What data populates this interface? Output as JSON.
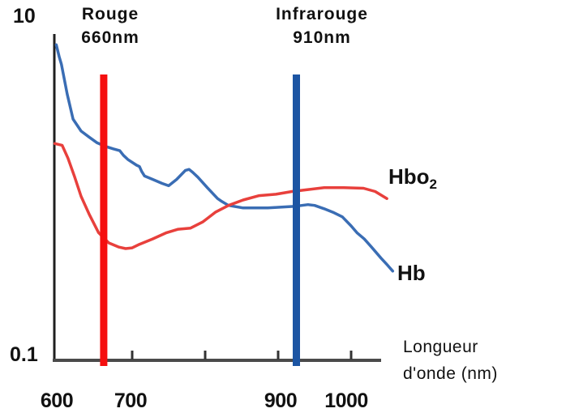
{
  "colors": {
    "background": "#ffffff",
    "x_axis_line": "#4a4a4a",
    "y_axis_line": "#1f1f1f",
    "tick": "#333333",
    "text": "#111111"
  },
  "chart_data": {
    "type": "line",
    "title": "",
    "y_axis": {
      "scale": "log",
      "min": 0.1,
      "max": 10,
      "top_label": "10",
      "bottom_label": "0.1"
    },
    "x_axis": {
      "label_line1": "Longueur",
      "label_line2": "d'onde (nm)",
      "min": 600,
      "max": 1060,
      "ticks_nm": [
        700,
        800,
        900,
        1000
      ],
      "tick_labels": [
        {
          "nm": 600,
          "text": "600"
        },
        {
          "nm": 700,
          "text": "700"
        },
        {
          "nm": 900,
          "text": "900"
        },
        {
          "nm": 1000,
          "text": "1000"
        }
      ]
    },
    "grid": false,
    "legend_position": "right-of-curves",
    "series": [
      {
        "name": "Hb",
        "label": "Hb",
        "color": "#3a6db4",
        "points": [
          [
            596,
            8.4
          ],
          [
            600,
            7.1
          ],
          [
            603,
            6.4
          ],
          [
            611,
            4.2
          ],
          [
            619,
            2.96
          ],
          [
            630,
            2.5
          ],
          [
            641,
            2.3
          ],
          [
            652,
            2.12
          ],
          [
            663,
            2.02
          ],
          [
            674,
            1.95
          ],
          [
            683,
            1.9
          ],
          [
            688,
            1.78
          ],
          [
            694,
            1.68
          ],
          [
            706,
            1.55
          ],
          [
            710,
            1.52
          ],
          [
            713,
            1.42
          ],
          [
            717,
            1.33
          ],
          [
            728,
            1.27
          ],
          [
            741,
            1.2
          ],
          [
            750,
            1.16
          ],
          [
            761,
            1.27
          ],
          [
            773,
            1.44
          ],
          [
            778,
            1.46
          ],
          [
            783,
            1.4
          ],
          [
            790,
            1.31
          ],
          [
            803,
            1.13
          ],
          [
            817,
            0.97
          ],
          [
            823,
            0.93
          ],
          [
            832,
            0.88
          ],
          [
            852,
            0.85
          ],
          [
            886,
            0.85
          ],
          [
            905,
            0.86
          ],
          [
            924,
            0.87
          ],
          [
            941,
            0.89
          ],
          [
            950,
            0.88
          ],
          [
            963,
            0.84
          ],
          [
            975,
            0.8
          ],
          [
            988,
            0.75
          ],
          [
            1000,
            0.66
          ],
          [
            1008,
            0.6
          ],
          [
            1018,
            0.55
          ],
          [
            1028,
            0.49
          ],
          [
            1041,
            0.42
          ],
          [
            1050,
            0.38
          ],
          [
            1057,
            0.35
          ]
        ]
      },
      {
        "name": "Hbo2",
        "label_main": "Hbo",
        "label_sub": "2",
        "color": "#e8403c",
        "points": [
          [
            594,
            2.1
          ],
          [
            604,
            2.05
          ],
          [
            612,
            1.71
          ],
          [
            621,
            1.32
          ],
          [
            630,
            1.0
          ],
          [
            641,
            0.78
          ],
          [
            654,
            0.6
          ],
          [
            668,
            0.52
          ],
          [
            682,
            0.49
          ],
          [
            691,
            0.48
          ],
          [
            700,
            0.485
          ],
          [
            710,
            0.51
          ],
          [
            728,
            0.55
          ],
          [
            747,
            0.6
          ],
          [
            763,
            0.63
          ],
          [
            780,
            0.64
          ],
          [
            797,
            0.7
          ],
          [
            814,
            0.8
          ],
          [
            832,
            0.88
          ],
          [
            852,
            0.95
          ],
          [
            874,
            1.01
          ],
          [
            897,
            1.03
          ],
          [
            919,
            1.07
          ],
          [
            941,
            1.1
          ],
          [
            963,
            1.13
          ],
          [
            990,
            1.13
          ],
          [
            1017,
            1.12
          ],
          [
            1033,
            1.07
          ],
          [
            1049,
            0.97
          ]
        ]
      }
    ],
    "markers": [
      {
        "label": "Rouge",
        "sublabel": "660nm",
        "wavelength_nm": 660,
        "drawn_at_nm": 661,
        "color": "#f50f0f"
      },
      {
        "label": "Infrarouge",
        "sublabel": "910nm",
        "wavelength_nm": 910,
        "drawn_at_nm": 925,
        "color": "#1c55a3"
      }
    ]
  }
}
